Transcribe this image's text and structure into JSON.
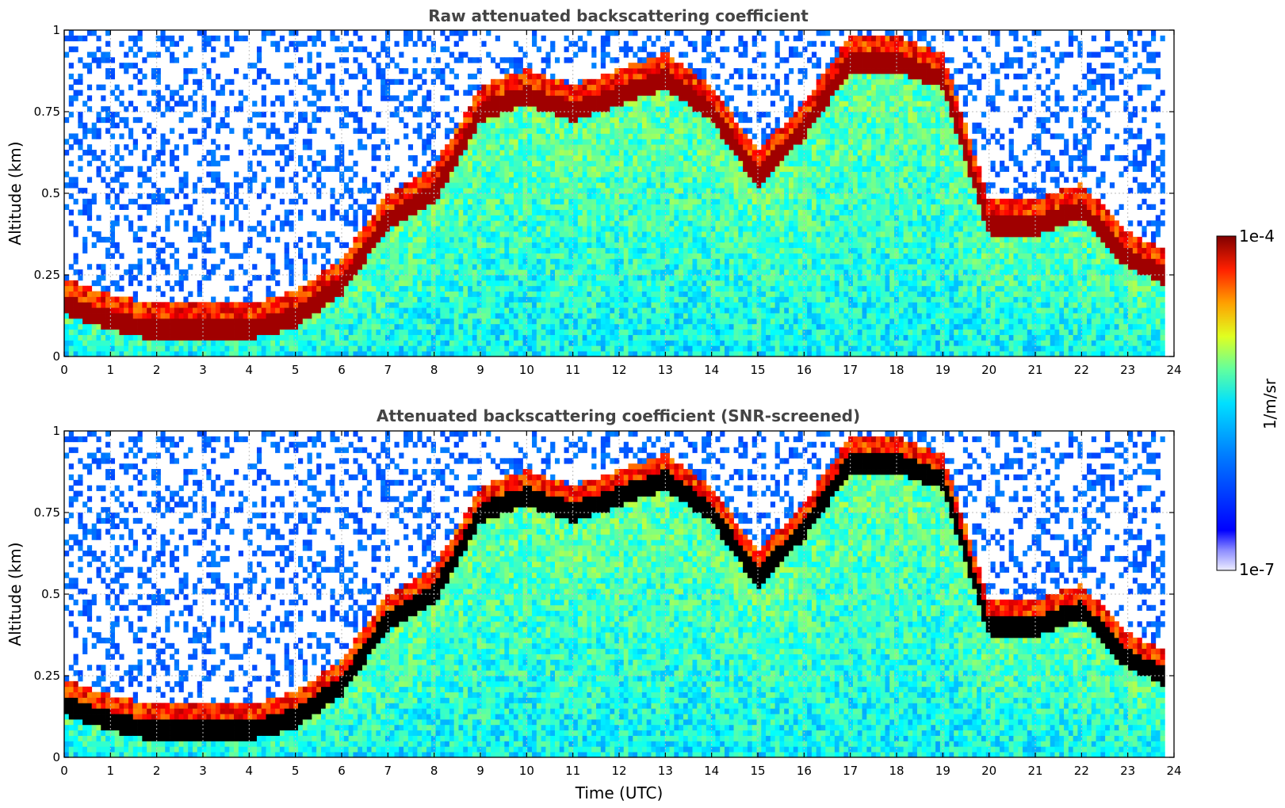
{
  "chart_data": [
    {
      "type": "heatmap",
      "title": "Raw attenuated backscattering coefficient",
      "xlabel": "",
      "ylabel": "Altitude (km)",
      "xlim": [
        0,
        24
      ],
      "ylim": [
        0,
        1
      ],
      "x_ticks": [
        "0",
        "1",
        "2",
        "3",
        "4",
        "5",
        "6",
        "7",
        "8",
        "9",
        "10",
        "11",
        "12",
        "13",
        "14",
        "15",
        "16",
        "17",
        "18",
        "19",
        "20",
        "21",
        "22",
        "23",
        "24"
      ],
      "y_ticks": [
        "0",
        "0.25",
        "0.5",
        "0.75",
        "1"
      ],
      "grid": true,
      "data_end_hour": 23.8,
      "layer_top_km": [
        [
          0,
          0.16
        ],
        [
          1,
          0.11
        ],
        [
          2,
          0.08
        ],
        [
          3,
          0.08
        ],
        [
          4,
          0.08
        ],
        [
          5,
          0.12
        ],
        [
          6,
          0.22
        ],
        [
          7,
          0.42
        ],
        [
          8,
          0.5
        ],
        [
          9,
          0.75
        ],
        [
          10,
          0.8
        ],
        [
          11,
          0.75
        ],
        [
          12,
          0.8
        ],
        [
          13,
          0.85
        ],
        [
          14,
          0.75
        ],
        [
          15,
          0.55
        ],
        [
          16,
          0.7
        ],
        [
          17,
          0.9
        ],
        [
          18,
          0.9
        ],
        [
          19,
          0.85
        ],
        [
          20,
          0.4
        ],
        [
          21,
          0.4
        ],
        [
          22,
          0.45
        ],
        [
          23,
          0.3
        ],
        [
          23.8,
          0.25
        ]
      ],
      "colormap": "jet",
      "colorbar": {
        "min_label": "1e-7",
        "max_label": "1e-4",
        "unit": "1/m/sr",
        "scale": "log"
      }
    },
    {
      "type": "heatmap",
      "title": "Attenuated backscattering coefficient (SNR-screened)",
      "xlabel": "Time (UTC)",
      "ylabel": "Altitude (km)",
      "xlim": [
        0,
        24
      ],
      "ylim": [
        0,
        1
      ],
      "x_ticks": [
        "0",
        "1",
        "2",
        "3",
        "4",
        "5",
        "6",
        "7",
        "8",
        "9",
        "10",
        "11",
        "12",
        "13",
        "14",
        "15",
        "16",
        "17",
        "18",
        "19",
        "20",
        "21",
        "22",
        "23",
        "24"
      ],
      "y_ticks": [
        "0",
        "0.25",
        "0.5",
        "0.75",
        "1"
      ],
      "grid": true,
      "data_end_hour": 23.8,
      "layer_top_km": [
        [
          0,
          0.16
        ],
        [
          1,
          0.11
        ],
        [
          2,
          0.08
        ],
        [
          3,
          0.08
        ],
        [
          4,
          0.08
        ],
        [
          5,
          0.12
        ],
        [
          6,
          0.22
        ],
        [
          7,
          0.42
        ],
        [
          8,
          0.5
        ],
        [
          9,
          0.75
        ],
        [
          10,
          0.8
        ],
        [
          11,
          0.75
        ],
        [
          12,
          0.8
        ],
        [
          13,
          0.85
        ],
        [
          14,
          0.75
        ],
        [
          15,
          0.55
        ],
        [
          16,
          0.7
        ],
        [
          17,
          0.9
        ],
        [
          18,
          0.9
        ],
        [
          19,
          0.85
        ],
        [
          20,
          0.4
        ],
        [
          21,
          0.4
        ],
        [
          22,
          0.45
        ],
        [
          23,
          0.3
        ],
        [
          23.8,
          0.25
        ]
      ],
      "colormap": "jet",
      "colorbar": {
        "min_label": "1e-7",
        "max_label": "1e-4",
        "unit": "1/m/sr",
        "scale": "log"
      }
    }
  ],
  "colorbar": {
    "min_label": "1e-7",
    "max_label": "1e-4",
    "unit_label": "1/m/sr"
  }
}
